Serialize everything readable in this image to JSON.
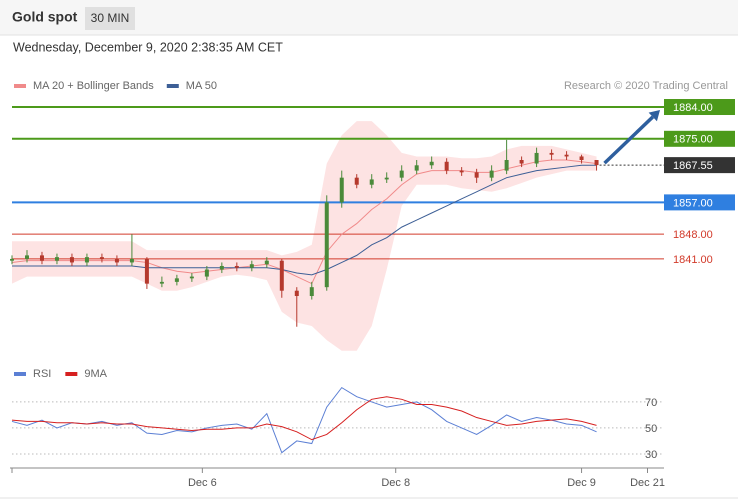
{
  "header": {
    "title": "Gold spot",
    "interval": "30 MIN",
    "timestamp": "Wednesday, December 9, 2020 2:38:35 AM CET",
    "credit": "Research © 2020 Trading Central"
  },
  "chart_data": [
    {
      "type": "candlestick",
      "x": [
        0,
        1,
        2,
        3,
        4,
        5,
        6,
        7,
        8,
        9,
        10,
        11,
        12,
        13,
        14,
        15,
        16,
        17,
        18,
        19,
        20,
        21,
        22,
        23,
        24,
        25,
        26,
        27,
        28,
        29,
        30,
        31,
        32,
        33,
        34,
        35,
        36,
        37,
        38,
        39
      ],
      "xlim": [
        0,
        43.5
      ],
      "ylim": [
        1813.8,
        1887.4
      ],
      "open": [
        1840.5,
        1841,
        1842,
        1840.5,
        1841.5,
        1840,
        1841.5,
        1841,
        1840,
        1841,
        1834,
        1834.5,
        1835.5,
        1836,
        1838,
        1839,
        1838.5,
        1839.5,
        1840.5,
        1832,
        1830.5,
        1833,
        1857,
        1864,
        1862,
        1863.5,
        1864,
        1866,
        1867.5,
        1868.5,
        1866,
        1865.5,
        1864,
        1866,
        1869,
        1868,
        1871,
        1870.5,
        1870,
        1869
      ],
      "high": [
        1842,
        1843.5,
        1843,
        1842.5,
        1842.5,
        1842.5,
        1842.5,
        1842,
        1848,
        1841.5,
        1836,
        1836.5,
        1837,
        1839,
        1840,
        1840,
        1840.5,
        1841.5,
        1841,
        1833,
        1834.5,
        1859,
        1866,
        1865,
        1865,
        1865.5,
        1867.5,
        1869,
        1870,
        1869.5,
        1867,
        1866.5,
        1867.5,
        1874.7,
        1870,
        1872.5,
        1872,
        1871.5,
        1870.5,
        1869
      ],
      "low": [
        1839.5,
        1840,
        1839.5,
        1839.5,
        1839,
        1839,
        1840,
        1839,
        1839,
        1832.5,
        1833,
        1833.5,
        1834.5,
        1835,
        1837,
        1837.5,
        1837.5,
        1838.5,
        1830,
        1821.8,
        1829.5,
        1832,
        1855.5,
        1861,
        1861,
        1862.5,
        1863,
        1865,
        1866.5,
        1865,
        1864.5,
        1862.5,
        1863,
        1865,
        1867,
        1867,
        1869,
        1869,
        1868,
        1866
      ],
      "close": [
        1841,
        1842,
        1840.5,
        1841.5,
        1840,
        1841.5,
        1841,
        1840,
        1841,
        1834,
        1834.5,
        1835.5,
        1836,
        1838,
        1839,
        1838.5,
        1839.5,
        1840.5,
        1832,
        1830.5,
        1833,
        1857,
        1864,
        1862,
        1863.5,
        1864,
        1866,
        1867.5,
        1868.5,
        1866,
        1865.5,
        1864,
        1866,
        1869,
        1868,
        1871,
        1870.5,
        1870,
        1869,
        1867.55
      ],
      "up_color": "#4a8a3a",
      "down_color": "#b5392d",
      "series": [
        {
          "name": "MA 20 + Bollinger Bands",
          "color": "#f08a8a",
          "values": [
            1840,
            1840.5,
            1840.5,
            1840.5,
            1840.5,
            1840.5,
            1840.5,
            1840.5,
            1840.5,
            1840,
            1838.5,
            1837.5,
            1837,
            1837.5,
            1838,
            1838.5,
            1839,
            1839.5,
            1838,
            1836,
            1834,
            1843,
            1848,
            1851,
            1855,
            1858,
            1862,
            1865,
            1866,
            1866,
            1866,
            1865.5,
            1865.5,
            1866.5,
            1867.5,
            1868.5,
            1869,
            1869,
            1868.5,
            1868
          ],
          "upper": [
            1846,
            1846,
            1846,
            1846,
            1846,
            1846,
            1846,
            1846,
            1846,
            1843.5,
            1843.5,
            1843.5,
            1843.5,
            1843.5,
            1843.5,
            1843.5,
            1843.5,
            1843.5,
            1842,
            1843,
            1845,
            1868,
            1876,
            1880,
            1880,
            1876,
            1871,
            1870,
            1870,
            1870,
            1869.5,
            1869.5,
            1870,
            1872,
            1873,
            1873,
            1873,
            1872,
            1871,
            1870
          ],
          "lower": [
            1834,
            1836,
            1836,
            1836,
            1836,
            1836,
            1836,
            1836,
            1836,
            1834,
            1832,
            1832,
            1833,
            1834.5,
            1836,
            1836.5,
            1836,
            1835,
            1826,
            1823,
            1822,
            1818,
            1815,
            1815,
            1822,
            1838,
            1856,
            1862,
            1862,
            1862,
            1861,
            1860.5,
            1860,
            1861,
            1862.5,
            1864,
            1865,
            1866,
            1866,
            1866
          ],
          "band_color": "#fde3e3"
        },
        {
          "name": "MA 50",
          "color": "#3d5f96",
          "values": [
            1839,
            1839,
            1839,
            1839,
            1839,
            1839,
            1839,
            1839,
            1839,
            1838.5,
            1838.5,
            1838.5,
            1838.5,
            1838.5,
            1838.5,
            1838.5,
            1838.5,
            1838.5,
            1838,
            1837,
            1836.5,
            1838,
            1840,
            1842,
            1845,
            1847,
            1850,
            1852,
            1854,
            1856,
            1858,
            1860,
            1862,
            1864,
            1865,
            1866,
            1866.5,
            1867,
            1867.5,
            1867.5
          ]
        }
      ],
      "levels": [
        {
          "value": 1884,
          "label": "1884.00",
          "color": "#4c9a1a",
          "boxed": true
        },
        {
          "value": 1875,
          "label": "1875.00",
          "color": "#4c9a1a",
          "boxed": true
        },
        {
          "value": 1857,
          "label": "1857.00",
          "color": "#2f7fe0",
          "boxed": true
        },
        {
          "value": 1848,
          "label": "1848.00",
          "color": "#d23a2a",
          "boxed": false
        },
        {
          "value": 1841,
          "label": "1841.00",
          "color": "#d23a2a",
          "boxed": false
        }
      ],
      "last_color": "#333333",
      "arrow_color": "#2e5f9e"
    },
    {
      "type": "line",
      "ylim": [
        19.2,
        83
      ],
      "yticks": [
        30,
        50,
        70
      ],
      "xticks": [
        {
          "value": 12.7,
          "label": "Dec 6"
        },
        {
          "value": 25.6,
          "label": "Dec 8"
        },
        {
          "value": 38,
          "label": "Dec 9"
        },
        {
          "value": 42.4,
          "label": "Dec 21"
        }
      ],
      "series": [
        {
          "name": "RSI",
          "color": "#5b7fd4",
          "values": [
            55,
            52,
            56,
            50,
            54,
            53,
            55,
            52,
            54,
            46,
            45,
            48,
            47,
            50,
            52,
            53,
            49,
            61,
            31,
            40,
            38,
            66,
            81,
            74,
            70,
            66,
            68,
            70,
            64,
            55,
            50,
            45,
            52,
            60,
            55,
            58,
            56,
            53,
            52,
            47
          ]
        },
        {
          "name": "9MA",
          "color": "#d62020",
          "values": [
            56,
            55,
            55,
            54,
            54,
            53,
            54,
            53,
            53,
            51,
            50,
            49,
            48,
            49,
            49,
            50,
            50,
            53,
            51,
            47,
            41,
            45,
            54,
            64,
            72,
            74,
            72,
            68,
            68,
            66,
            63,
            58,
            55,
            52,
            53,
            55,
            56,
            57,
            55,
            52
          ]
        }
      ]
    }
  ]
}
